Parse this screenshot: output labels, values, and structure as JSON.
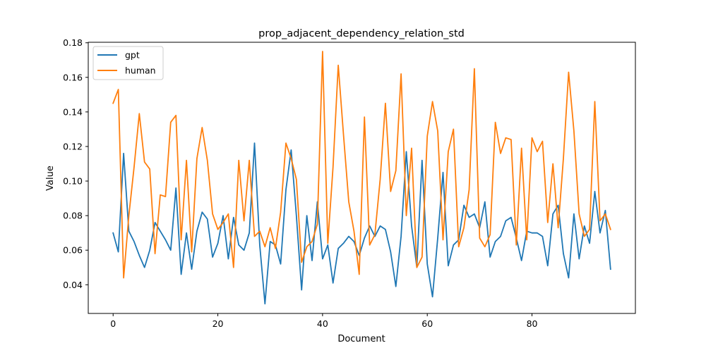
{
  "chart_data": {
    "type": "line",
    "title": "prop_adjacent_dependency_relation_std",
    "xlabel": "Document",
    "ylabel": "Value",
    "xlim": [
      -4.75,
      99.75
    ],
    "ylim": [
      0.0234,
      0.1803
    ],
    "xticks": [
      0,
      20,
      40,
      60,
      80
    ],
    "yticks": [
      0.04,
      0.06,
      0.08,
      0.1,
      0.12,
      0.14,
      0.16,
      0.18
    ],
    "ytick_labels": [
      "0.04",
      "0.06",
      "0.08",
      "0.10",
      "0.12",
      "0.14",
      "0.16",
      "0.18"
    ],
    "legend_position": "top-left",
    "grid": false,
    "series": [
      {
        "name": "gpt",
        "color": "#1f77b4",
        "values": [
          0.07,
          0.059,
          0.116,
          0.071,
          0.065,
          0.057,
          0.05,
          0.06,
          0.076,
          0.071,
          0.066,
          0.06,
          0.096,
          0.046,
          0.07,
          0.049,
          0.071,
          0.082,
          0.078,
          0.056,
          0.064,
          0.08,
          0.055,
          0.079,
          0.063,
          0.06,
          0.07,
          0.122,
          0.063,
          0.029,
          0.065,
          0.063,
          0.052,
          0.095,
          0.118,
          0.08,
          0.037,
          0.08,
          0.054,
          0.088,
          0.055,
          0.063,
          0.041,
          0.061,
          0.064,
          0.068,
          0.065,
          0.057,
          0.067,
          0.074,
          0.068,
          0.074,
          0.072,
          0.059,
          0.039,
          0.068,
          0.117,
          0.074,
          0.05,
          0.112,
          0.052,
          0.033,
          0.067,
          0.105,
          0.051,
          0.063,
          0.066,
          0.086,
          0.079,
          0.081,
          0.073,
          0.088,
          0.056,
          0.065,
          0.068,
          0.077,
          0.079,
          0.067,
          0.054,
          0.071,
          0.07,
          0.07,
          0.068,
          0.051,
          0.081,
          0.086,
          0.058,
          0.044,
          0.081,
          0.055,
          0.074,
          0.064,
          0.094,
          0.07,
          0.083,
          0.049
        ]
      },
      {
        "name": "human",
        "color": "#ff7f0e",
        "values": [
          0.145,
          0.153,
          0.044,
          0.08,
          0.108,
          0.139,
          0.111,
          0.107,
          0.058,
          0.092,
          0.091,
          0.134,
          0.138,
          0.066,
          0.112,
          0.059,
          0.113,
          0.131,
          0.112,
          0.081,
          0.072,
          0.076,
          0.081,
          0.05,
          0.112,
          0.077,
          0.112,
          0.068,
          0.071,
          0.062,
          0.073,
          0.061,
          0.082,
          0.122,
          0.113,
          0.101,
          0.053,
          0.062,
          0.065,
          0.075,
          0.175,
          0.064,
          0.108,
          0.167,
          0.127,
          0.088,
          0.071,
          0.046,
          0.137,
          0.063,
          0.069,
          0.101,
          0.145,
          0.094,
          0.106,
          0.162,
          0.08,
          0.119,
          0.05,
          0.056,
          0.126,
          0.146,
          0.129,
          0.066,
          0.117,
          0.13,
          0.062,
          0.073,
          0.095,
          0.165,
          0.067,
          0.062,
          0.069,
          0.134,
          0.116,
          0.125,
          0.124,
          0.063,
          0.119,
          0.066,
          0.125,
          0.117,
          0.123,
          0.076,
          0.11,
          0.073,
          0.113,
          0.163,
          0.129,
          0.081,
          0.068,
          0.072,
          0.146,
          0.077,
          0.081,
          0.072
        ]
      }
    ]
  }
}
